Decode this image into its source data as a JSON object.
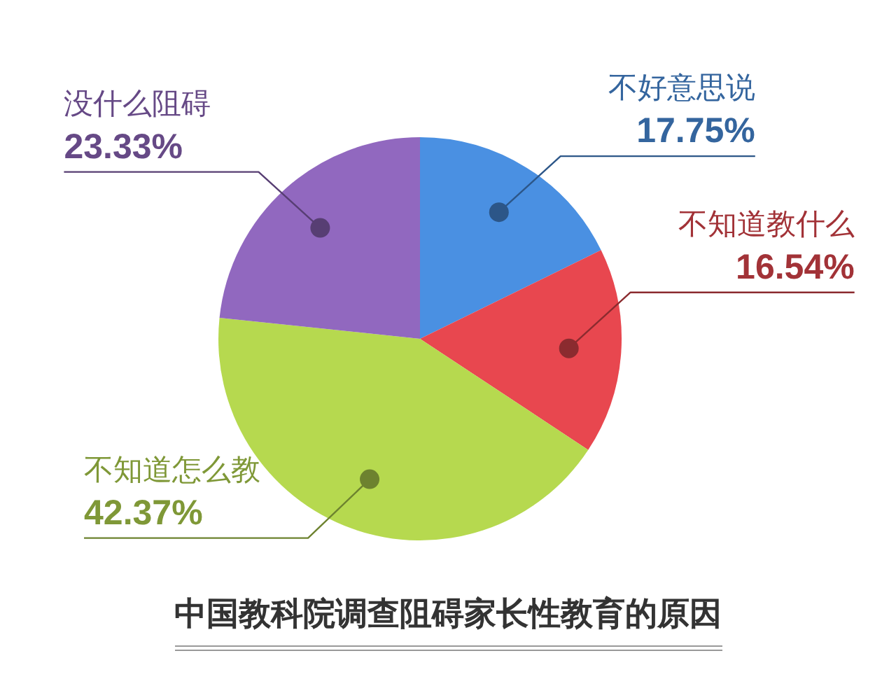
{
  "chart_data": {
    "type": "pie",
    "title": "中国教科院调查阻碍家长性教育的原因",
    "categories": [
      "不好意思说",
      "不知道教什么",
      "不知道怎么教",
      "没什么阻碍"
    ],
    "values": [
      17.75,
      16.54,
      42.37,
      23.33
    ],
    "colors": [
      "#4a90e2",
      "#e8474f",
      "#b6d94f",
      "#9168bf"
    ],
    "value_labels": [
      "17.75%",
      "16.54%",
      "42.37%",
      "23.33%"
    ]
  }
}
